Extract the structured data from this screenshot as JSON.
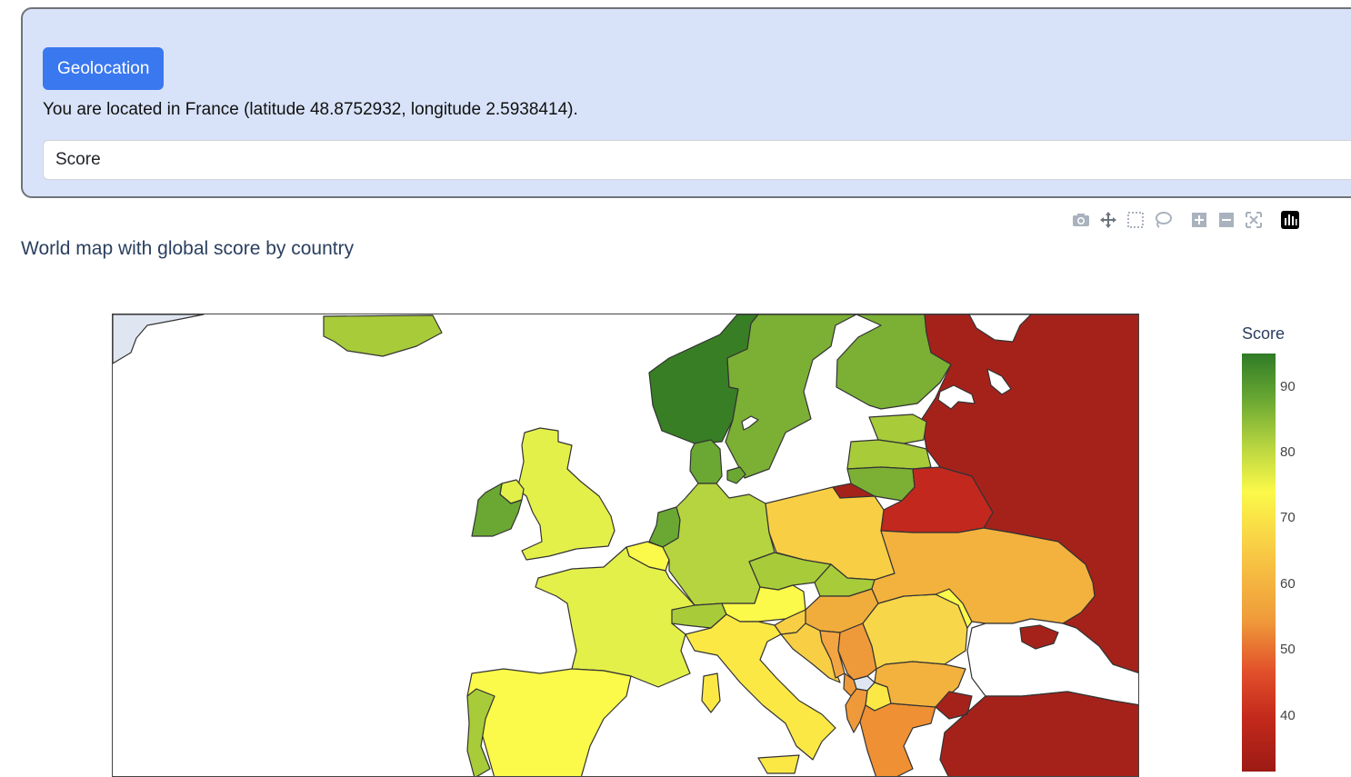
{
  "geolocation": {
    "button_label": "Geolocation",
    "status_text": "You are located in France (latitude 48.8752932, longitude 2.5938414)."
  },
  "metric_select": {
    "value": "Score"
  },
  "modebar": {
    "icons": [
      "camera-icon",
      "pan-icon",
      "box-select-icon",
      "lasso-icon",
      "zoom-in-icon",
      "zoom-out-icon",
      "reset-axes-icon",
      "plotly-logo-icon"
    ]
  },
  "plot": {
    "title": "World map with global score by country"
  },
  "colorbar": {
    "title": "Score",
    "ticks": [
      "90",
      "80",
      "70",
      "60",
      "50",
      "40"
    ],
    "colors": [
      "#2f7b26",
      "#6aa833",
      "#b6d43f",
      "#fbf949",
      "#f8c844",
      "#ef9a3a",
      "#e2502a",
      "#c42a1c",
      "#9c1a14"
    ]
  },
  "country_scores": {
    "Norway": 94,
    "Sweden": 88,
    "Finland": 88,
    "Denmark": 90,
    "Ireland": 91,
    "Estonia": 85,
    "Latvia": 85,
    "Lithuania": 88,
    "United Kingdom": 78,
    "Netherlands": 89,
    "Belgium": 74,
    "Germany": 82,
    "France": 78,
    "Switzerland": 86,
    "Austria": 74,
    "Czechia": 84,
    "Poland": 66,
    "Slovakia": 84,
    "Hungary": 62,
    "Slovenia": 67,
    "Croatia": 66,
    "Italy": 70,
    "Spain": 74,
    "Portugal": 85,
    "Romania": 67,
    "Moldova": 74,
    "Bulgaria": 62,
    "Serbia": 58,
    "Bosnia and Herzegovina": 64,
    "Montenegro": 57,
    "Albania": 57,
    "North Macedonia": 72,
    "Greece": 55,
    "Ukraine": 62,
    "Belarus": 40,
    "Russia": 34,
    "Turkey": 33
  }
}
